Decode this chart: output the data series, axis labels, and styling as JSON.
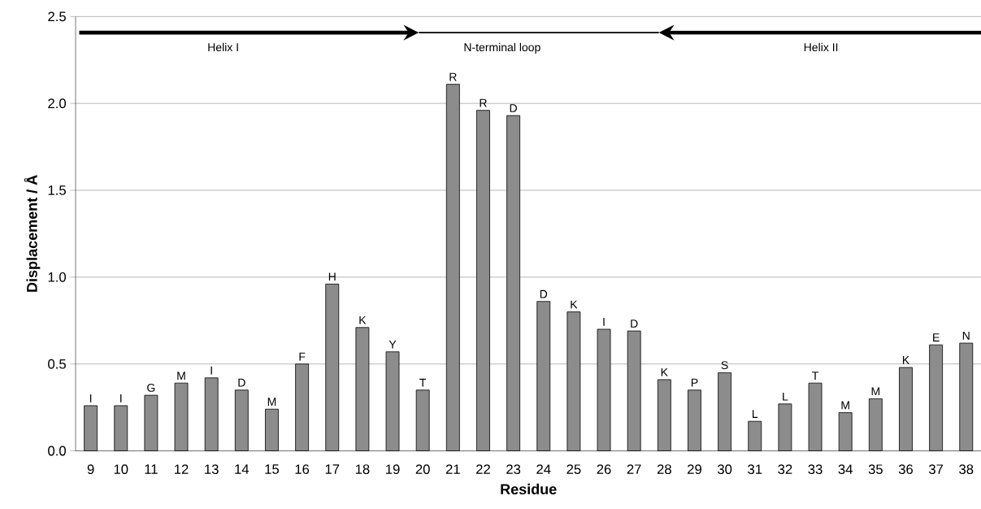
{
  "chart_data": {
    "type": "bar",
    "xlabel": "Residue",
    "ylabel": "Displacement / Å",
    "categories": [
      "9",
      "10",
      "11",
      "12",
      "13",
      "14",
      "15",
      "16",
      "17",
      "18",
      "19",
      "20",
      "21",
      "22",
      "23",
      "24",
      "25",
      "26",
      "27",
      "28",
      "29",
      "30",
      "31",
      "32",
      "33",
      "34",
      "35",
      "36",
      "37",
      "38"
    ],
    "values": [
      0.26,
      0.26,
      0.32,
      0.39,
      0.42,
      0.35,
      0.24,
      0.5,
      0.96,
      0.71,
      0.57,
      0.35,
      2.11,
      1.96,
      1.93,
      0.86,
      0.8,
      0.7,
      0.69,
      0.41,
      0.35,
      0.45,
      0.17,
      0.27,
      0.39,
      0.22,
      0.3,
      0.48,
      0.61,
      0.62
    ],
    "value_labels": [
      "I",
      "I",
      "G",
      "M",
      "I",
      "D",
      "M",
      "F",
      "H",
      "K",
      "Y",
      "T",
      "R",
      "R",
      "D",
      "D",
      "K",
      "I",
      "D",
      "K",
      "P",
      "S",
      "L",
      "L",
      "T",
      "M",
      "M",
      "K",
      "E",
      "N"
    ],
    "color": "#8c8c8c",
    "ylim": [
      0,
      2.5
    ],
    "yticks": [
      {
        "value": 0,
        "label": "0.0"
      },
      0.5,
      {
        "value": 1,
        "label": "1.0"
      },
      1.5,
      {
        "value": 2,
        "label": "2.0"
      },
      2.5
    ],
    "grid": "y",
    "annotations": [
      "Helix I",
      "N-terminal loop",
      "Helix II"
    ]
  }
}
